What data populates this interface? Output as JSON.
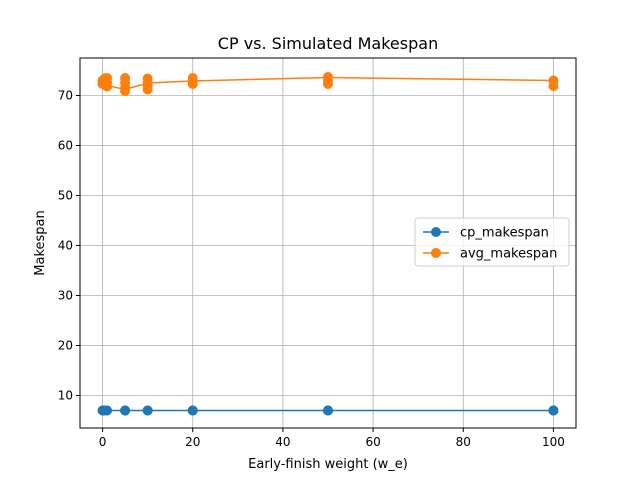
{
  "chart_data": {
    "type": "line",
    "title": "CP vs. Simulated Makespan",
    "xlabel": "Early-finish weight (w_e)",
    "ylabel": "Makespan",
    "xlim": [
      -5,
      105
    ],
    "ylim": [
      3.5,
      77.5
    ],
    "xticks": [
      0,
      20,
      40,
      60,
      80,
      100
    ],
    "yticks": [
      10,
      20,
      30,
      40,
      50,
      60,
      70
    ],
    "grid": true,
    "legend_position": "center-right",
    "series": [
      {
        "name": "cp_makespan",
        "color": "#1f77b4",
        "points": [
          {
            "x": 0,
            "y": 7
          },
          {
            "x": 0.1,
            "y": 7
          },
          {
            "x": 0.5,
            "y": 7
          },
          {
            "x": 1,
            "y": 7
          },
          {
            "x": 5,
            "y": 7
          },
          {
            "x": 5,
            "y": 7
          },
          {
            "x": 10,
            "y": 7
          },
          {
            "x": 10,
            "y": 7
          },
          {
            "x": 20,
            "y": 7
          },
          {
            "x": 20,
            "y": 7
          },
          {
            "x": 50,
            "y": 7
          },
          {
            "x": 50,
            "y": 7
          },
          {
            "x": 100,
            "y": 7
          },
          {
            "x": 100,
            "y": 7
          }
        ]
      },
      {
        "name": "avg_makespan",
        "color": "#ff7f0e",
        "points": [
          {
            "x": 0,
            "y": 72.3
          },
          {
            "x": 0,
            "y": 73.0
          },
          {
            "x": 0.1,
            "y": 72.6
          },
          {
            "x": 0.5,
            "y": 73.4
          },
          {
            "x": 1,
            "y": 71.8
          },
          {
            "x": 1,
            "y": 72.6
          },
          {
            "x": 1,
            "y": 73.5
          },
          {
            "x": 5,
            "y": 70.9
          },
          {
            "x": 5,
            "y": 71.6
          },
          {
            "x": 5,
            "y": 72.6
          },
          {
            "x": 5,
            "y": 73.5
          },
          {
            "x": 10,
            "y": 71.2
          },
          {
            "x": 10,
            "y": 72.0
          },
          {
            "x": 10,
            "y": 72.6
          },
          {
            "x": 10,
            "y": 73.4
          },
          {
            "x": 20,
            "y": 72.3
          },
          {
            "x": 20,
            "y": 72.9
          },
          {
            "x": 20,
            "y": 73.5
          },
          {
            "x": 50,
            "y": 72.3
          },
          {
            "x": 50,
            "y": 73.0
          },
          {
            "x": 50,
            "y": 73.7
          },
          {
            "x": 100,
            "y": 71.9
          },
          {
            "x": 100,
            "y": 73.0
          }
        ],
        "mean_line": [
          {
            "x": 0,
            "y": 72.8
          },
          {
            "x": 0.1,
            "y": 72.6
          },
          {
            "x": 0.5,
            "y": 73.0
          },
          {
            "x": 1,
            "y": 72.0
          },
          {
            "x": 5,
            "y": 71.2
          },
          {
            "x": 10,
            "y": 72.5
          },
          {
            "x": 20,
            "y": 72.9
          },
          {
            "x": 50,
            "y": 73.6
          },
          {
            "x": 100,
            "y": 73.0
          }
        ]
      }
    ]
  }
}
